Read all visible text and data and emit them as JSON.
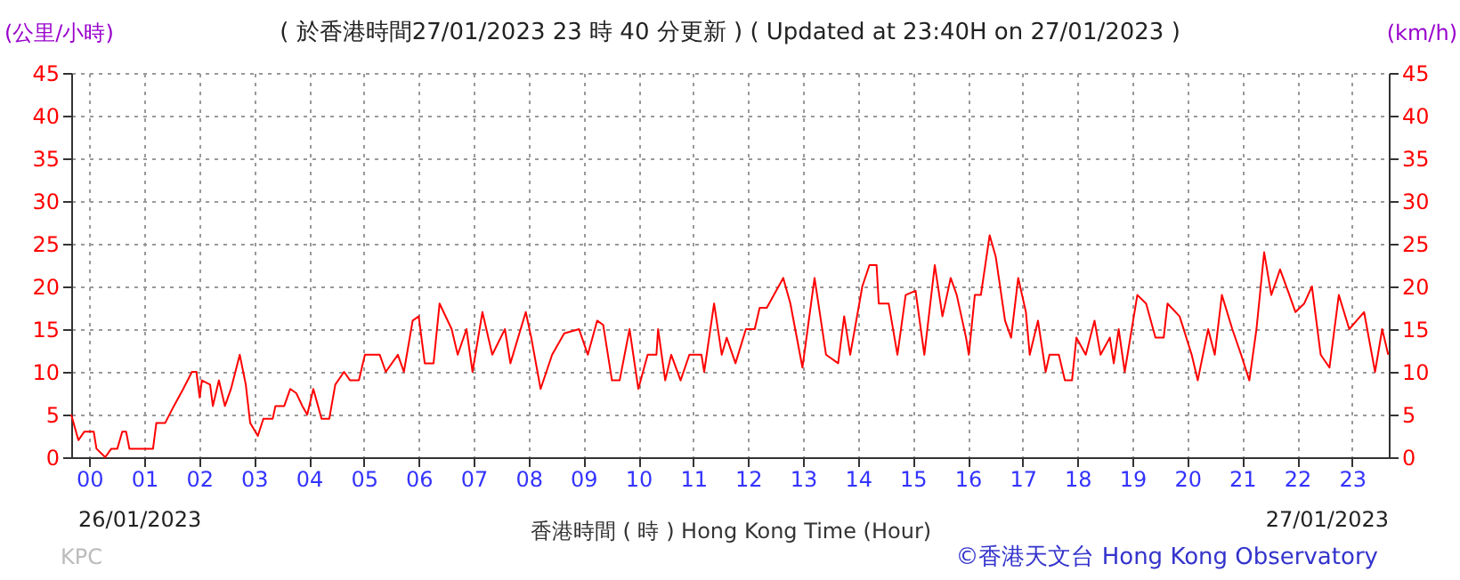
{
  "chart_data": {
    "type": "line",
    "title": "( 於香港時間27/01/2023 23 時 40 分更新 ) ( Updated at 23:40H on 27/01/2023 )",
    "xlabel": "香港時間 ( 時 )  Hong Kong Time (Hour)",
    "ylabel": "(公里/小時)",
    "y2label": "(km/h)",
    "annotations": [
      "26/01/2023",
      "27/01/2023",
      "KPC",
      "©香港天文台 Hong Kong Observatory"
    ],
    "x": [
      -0.33,
      -0.2,
      -0.09,
      0.08,
      0.13,
      0.29,
      0.4,
      0.51,
      0.6,
      0.67,
      0.73,
      1.16,
      1.22,
      1.38,
      1.54,
      1.71,
      1.87,
      1.95,
      2.01,
      2.05,
      2.2,
      2.25,
      2.36,
      2.47,
      2.58,
      2.68,
      2.74,
      2.85,
      2.93,
      3.07,
      3.17,
      3.34,
      3.39,
      3.55,
      3.66,
      3.77,
      3.88,
      3.97,
      4.08,
      4.23,
      4.37,
      4.48,
      4.64,
      4.75,
      4.91,
      5.02,
      5.29,
      5.4,
      5.62,
      5.73,
      5.89,
      6.0,
      6.11,
      6.27,
      6.38,
      6.6,
      6.71,
      6.87,
      6.98,
      7.16,
      7.34,
      7.57,
      7.67,
      7.95,
      8.05,
      8.22,
      8.43,
      8.65,
      8.92,
      9.08,
      9.25,
      9.36,
      9.52,
      9.66,
      9.84,
      10.0,
      10.17,
      10.33,
      10.36,
      10.49,
      10.6,
      10.77,
      10.93,
      11.15,
      11.2,
      11.38,
      11.52,
      11.61,
      11.77,
      11.96,
      12.12,
      12.21,
      12.34,
      12.64,
      12.77,
      12.99,
      13.21,
      13.42,
      13.64,
      13.75,
      13.86,
      14.08,
      14.21,
      14.34,
      14.38,
      14.56,
      14.72,
      14.87,
      15.05,
      15.21,
      15.4,
      15.54,
      15.69,
      15.8,
      15.97,
      16.02,
      16.13,
      16.24,
      16.4,
      16.51,
      16.68,
      16.79,
      16.92,
      17.06,
      17.13,
      17.28,
      17.42,
      17.49,
      17.66,
      17.77,
      17.9,
      17.98,
      18.15,
      18.31,
      18.42,
      18.59,
      18.66,
      18.75,
      18.86,
      19.09,
      19.25,
      19.42,
      19.57,
      19.64,
      19.86,
      20.08,
      20.19,
      20.38,
      20.5,
      20.63,
      20.82,
      20.98,
      21.13,
      21.26,
      21.4,
      21.53,
      21.69,
      21.86,
      21.97,
      22.13,
      22.27,
      22.43,
      22.59,
      22.76,
      22.95,
      23.22,
      23.42,
      23.55,
      23.66
    ],
    "series": [
      {
        "color": "#ff0000",
        "values": [
          5,
          2,
          3,
          3,
          1,
          0,
          1,
          1,
          3,
          3,
          1,
          1,
          4,
          4,
          6,
          8,
          10,
          10,
          7,
          9,
          8.5,
          6,
          9,
          6,
          8,
          10.5,
          12,
          8.5,
          4,
          2.5,
          4.5,
          4.5,
          6,
          6,
          8,
          7.5,
          6,
          5,
          8,
          4.5,
          4.5,
          8.5,
          10,
          9,
          9,
          12,
          12,
          10,
          12,
          10,
          16,
          16.5,
          11,
          11,
          18,
          15,
          12,
          15,
          10,
          17,
          12,
          15,
          11,
          17,
          14,
          8,
          12,
          14.5,
          15,
          12,
          16,
          15.5,
          9,
          9,
          15,
          8,
          12,
          12,
          15,
          9,
          12,
          9,
          12,
          12,
          10,
          18,
          12,
          14,
          11,
          15,
          15,
          17.5,
          17.5,
          21,
          18,
          10.5,
          21,
          12,
          11,
          16.5,
          12,
          20,
          22.5,
          22.5,
          18,
          18,
          12,
          19,
          19.5,
          12,
          22.5,
          16.5,
          21,
          19,
          14,
          12,
          19,
          19,
          26,
          23.5,
          16,
          14,
          21,
          17,
          12,
          16,
          10,
          12,
          12,
          9,
          9,
          14,
          12,
          16,
          12,
          14,
          11,
          15,
          10,
          19,
          18,
          14,
          14,
          18,
          16.5,
          12,
          9,
          15,
          12,
          19,
          15,
          12,
          9,
          15,
          24,
          19,
          22,
          19,
          17,
          18,
          20,
          12,
          10.5,
          19,
          15,
          17,
          10,
          15,
          12
        ]
      }
    ],
    "xlim": [
      -0.33,
      23.67
    ],
    "xticks": [
      {
        "value": 0,
        "label": "00"
      },
      {
        "value": 1,
        "label": "01"
      },
      {
        "value": 2,
        "label": "02"
      },
      {
        "value": 3,
        "label": "03"
      },
      {
        "value": 4,
        "label": "04"
      },
      {
        "value": 5,
        "label": "05"
      },
      {
        "value": 6,
        "label": "06"
      },
      {
        "value": 7,
        "label": "07"
      },
      {
        "value": 8,
        "label": "08"
      },
      {
        "value": 9,
        "label": "09"
      },
      10,
      11,
      12,
      13,
      14,
      15,
      16,
      17,
      18,
      19,
      20,
      21,
      22,
      23
    ],
    "ylim": [
      0,
      45
    ],
    "yticks": [
      0,
      5,
      10,
      15,
      20,
      25,
      30,
      35,
      40,
      45
    ],
    "y2lim": [
      0,
      45
    ],
    "y2ticks": [
      0,
      5,
      10,
      15,
      20,
      25,
      30,
      35,
      40,
      45
    ],
    "grid": true
  }
}
